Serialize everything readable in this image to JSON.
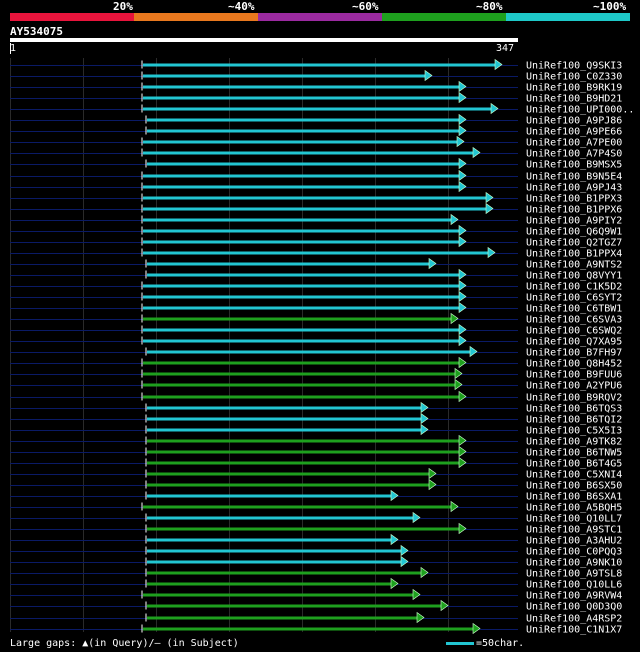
{
  "legend": {
    "labels": [
      "20%",
      "~40%",
      "~60%",
      "~80%",
      "~100%"
    ],
    "colors": [
      "#e8143c",
      "#e8781e",
      "#9b2aa0",
      "#1ea01e",
      "#1ec8c8"
    ]
  },
  "query": {
    "id": "AY534075",
    "start": "1",
    "end": "347",
    "length": 347
  },
  "footer": {
    "large_gaps": "Large gaps: ▲(in Query)/– (in Subject)",
    "scale": "=50char."
  },
  "hits": [
    {
      "label": "UniRef100_Q9SKI3",
      "s": 142,
      "e": 502,
      "c": "cyan"
    },
    {
      "label": "UniRef100_C0Z330",
      "s": 142,
      "e": 432,
      "c": "cyan"
    },
    {
      "label": "UniRef100_B9RK19",
      "s": 142,
      "e": 466,
      "c": "cyan"
    },
    {
      "label": "UniRef100_B9HD21",
      "s": 142,
      "e": 466,
      "c": "cyan"
    },
    {
      "label": "UniRef100_UPI000..",
      "s": 142,
      "e": 498,
      "c": "cyan"
    },
    {
      "label": "UniRef100_A9PJ86",
      "s": 146,
      "e": 466,
      "c": "cyan"
    },
    {
      "label": "UniRef100_A9PE66",
      "s": 146,
      "e": 466,
      "c": "cyan"
    },
    {
      "label": "UniRef100_A7PE00",
      "s": 142,
      "e": 464,
      "c": "cyan"
    },
    {
      "label": "UniRef100_A7P4S0",
      "s": 142,
      "e": 480,
      "c": "cyan"
    },
    {
      "label": "UniRef100_B9MSX5",
      "s": 146,
      "e": 466,
      "c": "cyan"
    },
    {
      "label": "UniRef100_B9N5E4",
      "s": 142,
      "e": 466,
      "c": "cyan"
    },
    {
      "label": "UniRef100_A9PJ43",
      "s": 142,
      "e": 466,
      "c": "cyan"
    },
    {
      "label": "UniRef100_B1PPX3",
      "s": 142,
      "e": 493,
      "c": "cyan"
    },
    {
      "label": "UniRef100_B1PPX6",
      "s": 142,
      "e": 493,
      "c": "cyan"
    },
    {
      "label": "UniRef100_A9PIY2",
      "s": 142,
      "e": 458,
      "c": "cyan"
    },
    {
      "label": "UniRef100_Q6Q9W1",
      "s": 142,
      "e": 466,
      "c": "cyan"
    },
    {
      "label": "UniRef100_Q2TGZ7",
      "s": 142,
      "e": 466,
      "c": "cyan"
    },
    {
      "label": "UniRef100_B1PPX4",
      "s": 142,
      "e": 495,
      "c": "cyan"
    },
    {
      "label": "UniRef100_A9NTS2",
      "s": 146,
      "e": 436,
      "c": "cyan"
    },
    {
      "label": "UniRef100_Q8VYY1",
      "s": 146,
      "e": 466,
      "c": "cyan"
    },
    {
      "label": "UniRef100_C1K5D2",
      "s": 142,
      "e": 466,
      "c": "cyan"
    },
    {
      "label": "UniRef100_C6SYT2",
      "s": 142,
      "e": 466,
      "c": "cyan"
    },
    {
      "label": "UniRef100_C6TBW1",
      "s": 142,
      "e": 466,
      "c": "cyan"
    },
    {
      "label": "UniRef100_C6SVA3",
      "s": 142,
      "e": 458,
      "c": "green"
    },
    {
      "label": "UniRef100_C6SWQ2",
      "s": 142,
      "e": 466,
      "c": "cyan"
    },
    {
      "label": "UniRef100_Q7XA95",
      "s": 142,
      "e": 466,
      "c": "cyan"
    },
    {
      "label": "UniRef100_B7FH97",
      "s": 146,
      "e": 477,
      "c": "cyan"
    },
    {
      "label": "UniRef100_Q8H452",
      "s": 142,
      "e": 466,
      "c": "green"
    },
    {
      "label": "UniRef100_B9FUU6",
      "s": 142,
      "e": 462,
      "c": "green"
    },
    {
      "label": "UniRef100_A2YPU6",
      "s": 142,
      "e": 462,
      "c": "green"
    },
    {
      "label": "UniRef100_B9RQV2",
      "s": 142,
      "e": 466,
      "c": "green"
    },
    {
      "label": "UniRef100_B6TQS3",
      "s": 146,
      "e": 428,
      "c": "cyan"
    },
    {
      "label": "UniRef100_B6TQI2",
      "s": 146,
      "e": 428,
      "c": "cyan"
    },
    {
      "label": "UniRef100_C5X5I3",
      "s": 146,
      "e": 428,
      "c": "cyan"
    },
    {
      "label": "UniRef100_A9TK82",
      "s": 146,
      "e": 466,
      "c": "green"
    },
    {
      "label": "UniRef100_B6TNW5",
      "s": 146,
      "e": 466,
      "c": "green"
    },
    {
      "label": "UniRef100_B6T4G5",
      "s": 146,
      "e": 466,
      "c": "green"
    },
    {
      "label": "UniRef100_C5XNI4",
      "s": 146,
      "e": 436,
      "c": "green"
    },
    {
      "label": "UniRef100_B6SX50",
      "s": 146,
      "e": 436,
      "c": "green"
    },
    {
      "label": "UniRef100_B6SXA1",
      "s": 146,
      "e": 398,
      "c": "cyan"
    },
    {
      "label": "UniRef100_A5BQH5",
      "s": 142,
      "e": 458,
      "c": "green"
    },
    {
      "label": "UniRef100_Q10LL7",
      "s": 146,
      "e": 420,
      "c": "cyan"
    },
    {
      "label": "UniRef100_A9STC1",
      "s": 146,
      "e": 466,
      "c": "green"
    },
    {
      "label": "UniRef100_A3AHU2",
      "s": 146,
      "e": 398,
      "c": "cyan"
    },
    {
      "label": "UniRef100_C0PQQ3",
      "s": 146,
      "e": 408,
      "c": "cyan"
    },
    {
      "label": "UniRef100_A9NK10",
      "s": 146,
      "e": 408,
      "c": "cyan"
    },
    {
      "label": "UniRef100_A9TSL8",
      "s": 146,
      "e": 428,
      "c": "green"
    },
    {
      "label": "UniRef100_Q10LL6",
      "s": 146,
      "e": 398,
      "c": "green"
    },
    {
      "label": "UniRef100_A9RVW4",
      "s": 142,
      "e": 420,
      "c": "green"
    },
    {
      "label": "UniRef100_Q0D3Q0",
      "s": 146,
      "e": 448,
      "c": "green"
    },
    {
      "label": "UniRef100_A4RSP2",
      "s": 146,
      "e": 424,
      "c": "green"
    },
    {
      "label": "UniRef100_C1N1X7",
      "s": 142,
      "e": 480,
      "c": "green"
    }
  ]
}
